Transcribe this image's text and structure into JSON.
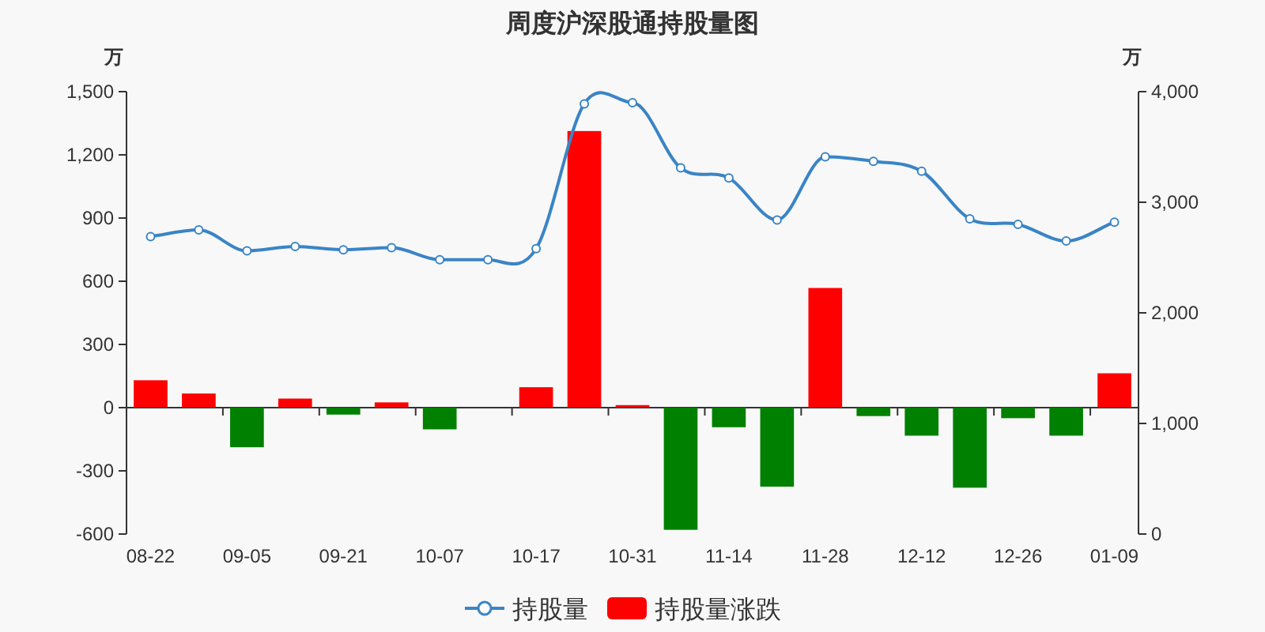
{
  "chart_data": {
    "type": "bar",
    "title": "周度沪深股通持股量图",
    "ylabel": "万",
    "y2label": "万",
    "categories": [
      "08-22",
      null,
      "09-05",
      null,
      "09-21",
      null,
      "10-07",
      null,
      "10-17",
      null,
      "10-31",
      null,
      "11-14",
      null,
      "11-28",
      null,
      "12-12",
      null,
      "12-26",
      null,
      "01-09"
    ],
    "series": [
      {
        "name": "持股量",
        "type": "line",
        "axis": "y2",
        "color": "#3a84c6",
        "marker": "circle",
        "values": [
          2690,
          2750,
          2560,
          2600,
          2570,
          2590,
          2480,
          2480,
          2580,
          3890,
          3900,
          3310,
          3220,
          2840,
          3410,
          3370,
          3280,
          2850,
          2800,
          2650,
          2820
        ]
      },
      {
        "name": "持股量涨跌",
        "color": "#ff0000",
        "values": [
          130,
          67,
          -188,
          43,
          -33,
          25,
          -103,
          0,
          97,
          1313,
          12,
          -580,
          -93,
          -375,
          568,
          -40,
          -133,
          -380,
          -50,
          -133,
          163
        ],
        "colors": [
          "#ff0000",
          "#ff0000",
          "#008000",
          "#ff0000",
          "#008000",
          "#ff0000",
          "#008000",
          "#008000",
          "#ff0000",
          "#ff0000",
          "#ff0000",
          "#008000",
          "#008000",
          "#008000",
          "#ff0000",
          "#008000",
          "#008000",
          "#008000",
          "#008000",
          "#008000",
          "#ff0000"
        ]
      }
    ],
    "ylim": [
      -600,
      1500
    ],
    "yticks": [
      -600,
      -300,
      0,
      300,
      600,
      900,
      {
        "value": 1200,
        "label": "1,200"
      },
      {
        "value": 1500,
        "label": "1,500"
      }
    ],
    "y2lim": [
      0,
      4000
    ],
    "y2ticks": [
      0,
      {
        "value": 1000,
        "label": "1,000"
      },
      {
        "value": 2000,
        "label": "2,000"
      },
      {
        "value": 3000,
        "label": "3,000"
      },
      {
        "value": 4000,
        "label": "4,000"
      }
    ],
    "legend": "bottom"
  }
}
